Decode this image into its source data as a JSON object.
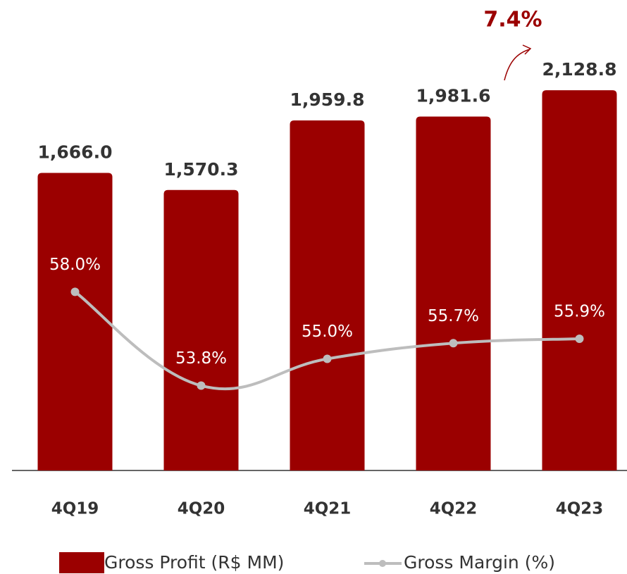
{
  "chart_data": {
    "type": "bar-line",
    "categories": [
      "4Q19",
      "4Q20",
      "4Q21",
      "4Q22",
      "4Q23"
    ],
    "series": [
      {
        "name": "Gross Profit (R$ MM)",
        "color": "#9b0000",
        "values": [
          1666.0,
          1570.3,
          1959.8,
          1981.6,
          2128.8
        ],
        "value_labels": [
          "1,666.0",
          "1,570.3",
          "1,959.8",
          "1,981.6",
          "2,128.8"
        ]
      },
      {
        "name": "Gross Margin (%)",
        "color": "#bdbdbd",
        "axis": "y2",
        "values": [
          58.0,
          53.8,
          55.0,
          55.7,
          55.9
        ],
        "value_labels": [
          "58.0%",
          "53.8%",
          "55.0%",
          "55.7%",
          "55.9%"
        ]
      }
    ],
    "annotation": "7.4%",
    "ylim": [
      0,
      2500
    ],
    "y2lim": [
      50,
      70
    ],
    "legend": "bottom"
  }
}
